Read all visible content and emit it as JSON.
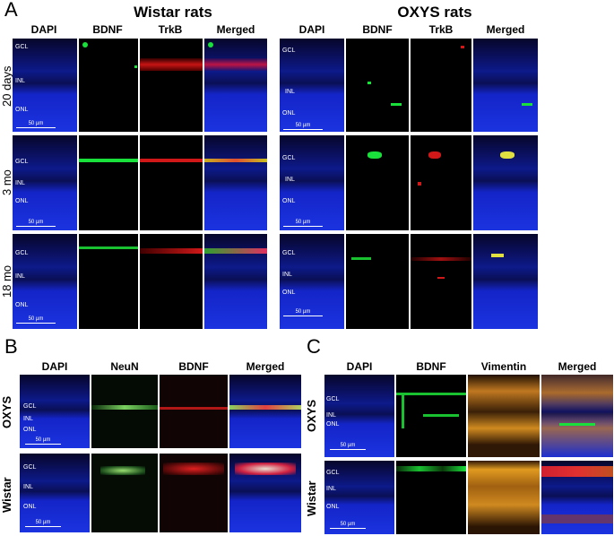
{
  "panels": {
    "A": {
      "letter": "A",
      "groups": [
        {
          "title": "Wistar rats",
          "columns": [
            "DAPI",
            "BDNF",
            "TrkB",
            "Merged"
          ]
        },
        {
          "title": "OXYS rats",
          "columns": [
            "DAPI",
            "BDNF",
            "TrkB",
            "Merged"
          ]
        }
      ],
      "rows": [
        "20 days",
        "3 mo",
        "18 mo"
      ],
      "layers": [
        "GCL",
        "INL",
        "ONL"
      ],
      "scale": "50 µm"
    },
    "B": {
      "letter": "B",
      "columns": [
        "DAPI",
        "NeuN",
        "BDNF",
        "Merged"
      ],
      "rows": [
        "OXYS",
        "Wistar"
      ],
      "layers": [
        "GCL",
        "INL",
        "ONL"
      ],
      "scale": "50 µm"
    },
    "C": {
      "letter": "C",
      "columns": [
        "DAPI",
        "BDNF",
        "Vimentin",
        "Merged"
      ],
      "rows": [
        "OXYS",
        "Wistar"
      ],
      "layers": [
        "GCL",
        "INL",
        "ONL"
      ],
      "scale": "50 µm"
    }
  },
  "colors": {
    "dapi": "#1b33e0",
    "bdnf": "#19e03a",
    "trkb": "#e01a1a",
    "vimentin": "#d88a1a"
  }
}
